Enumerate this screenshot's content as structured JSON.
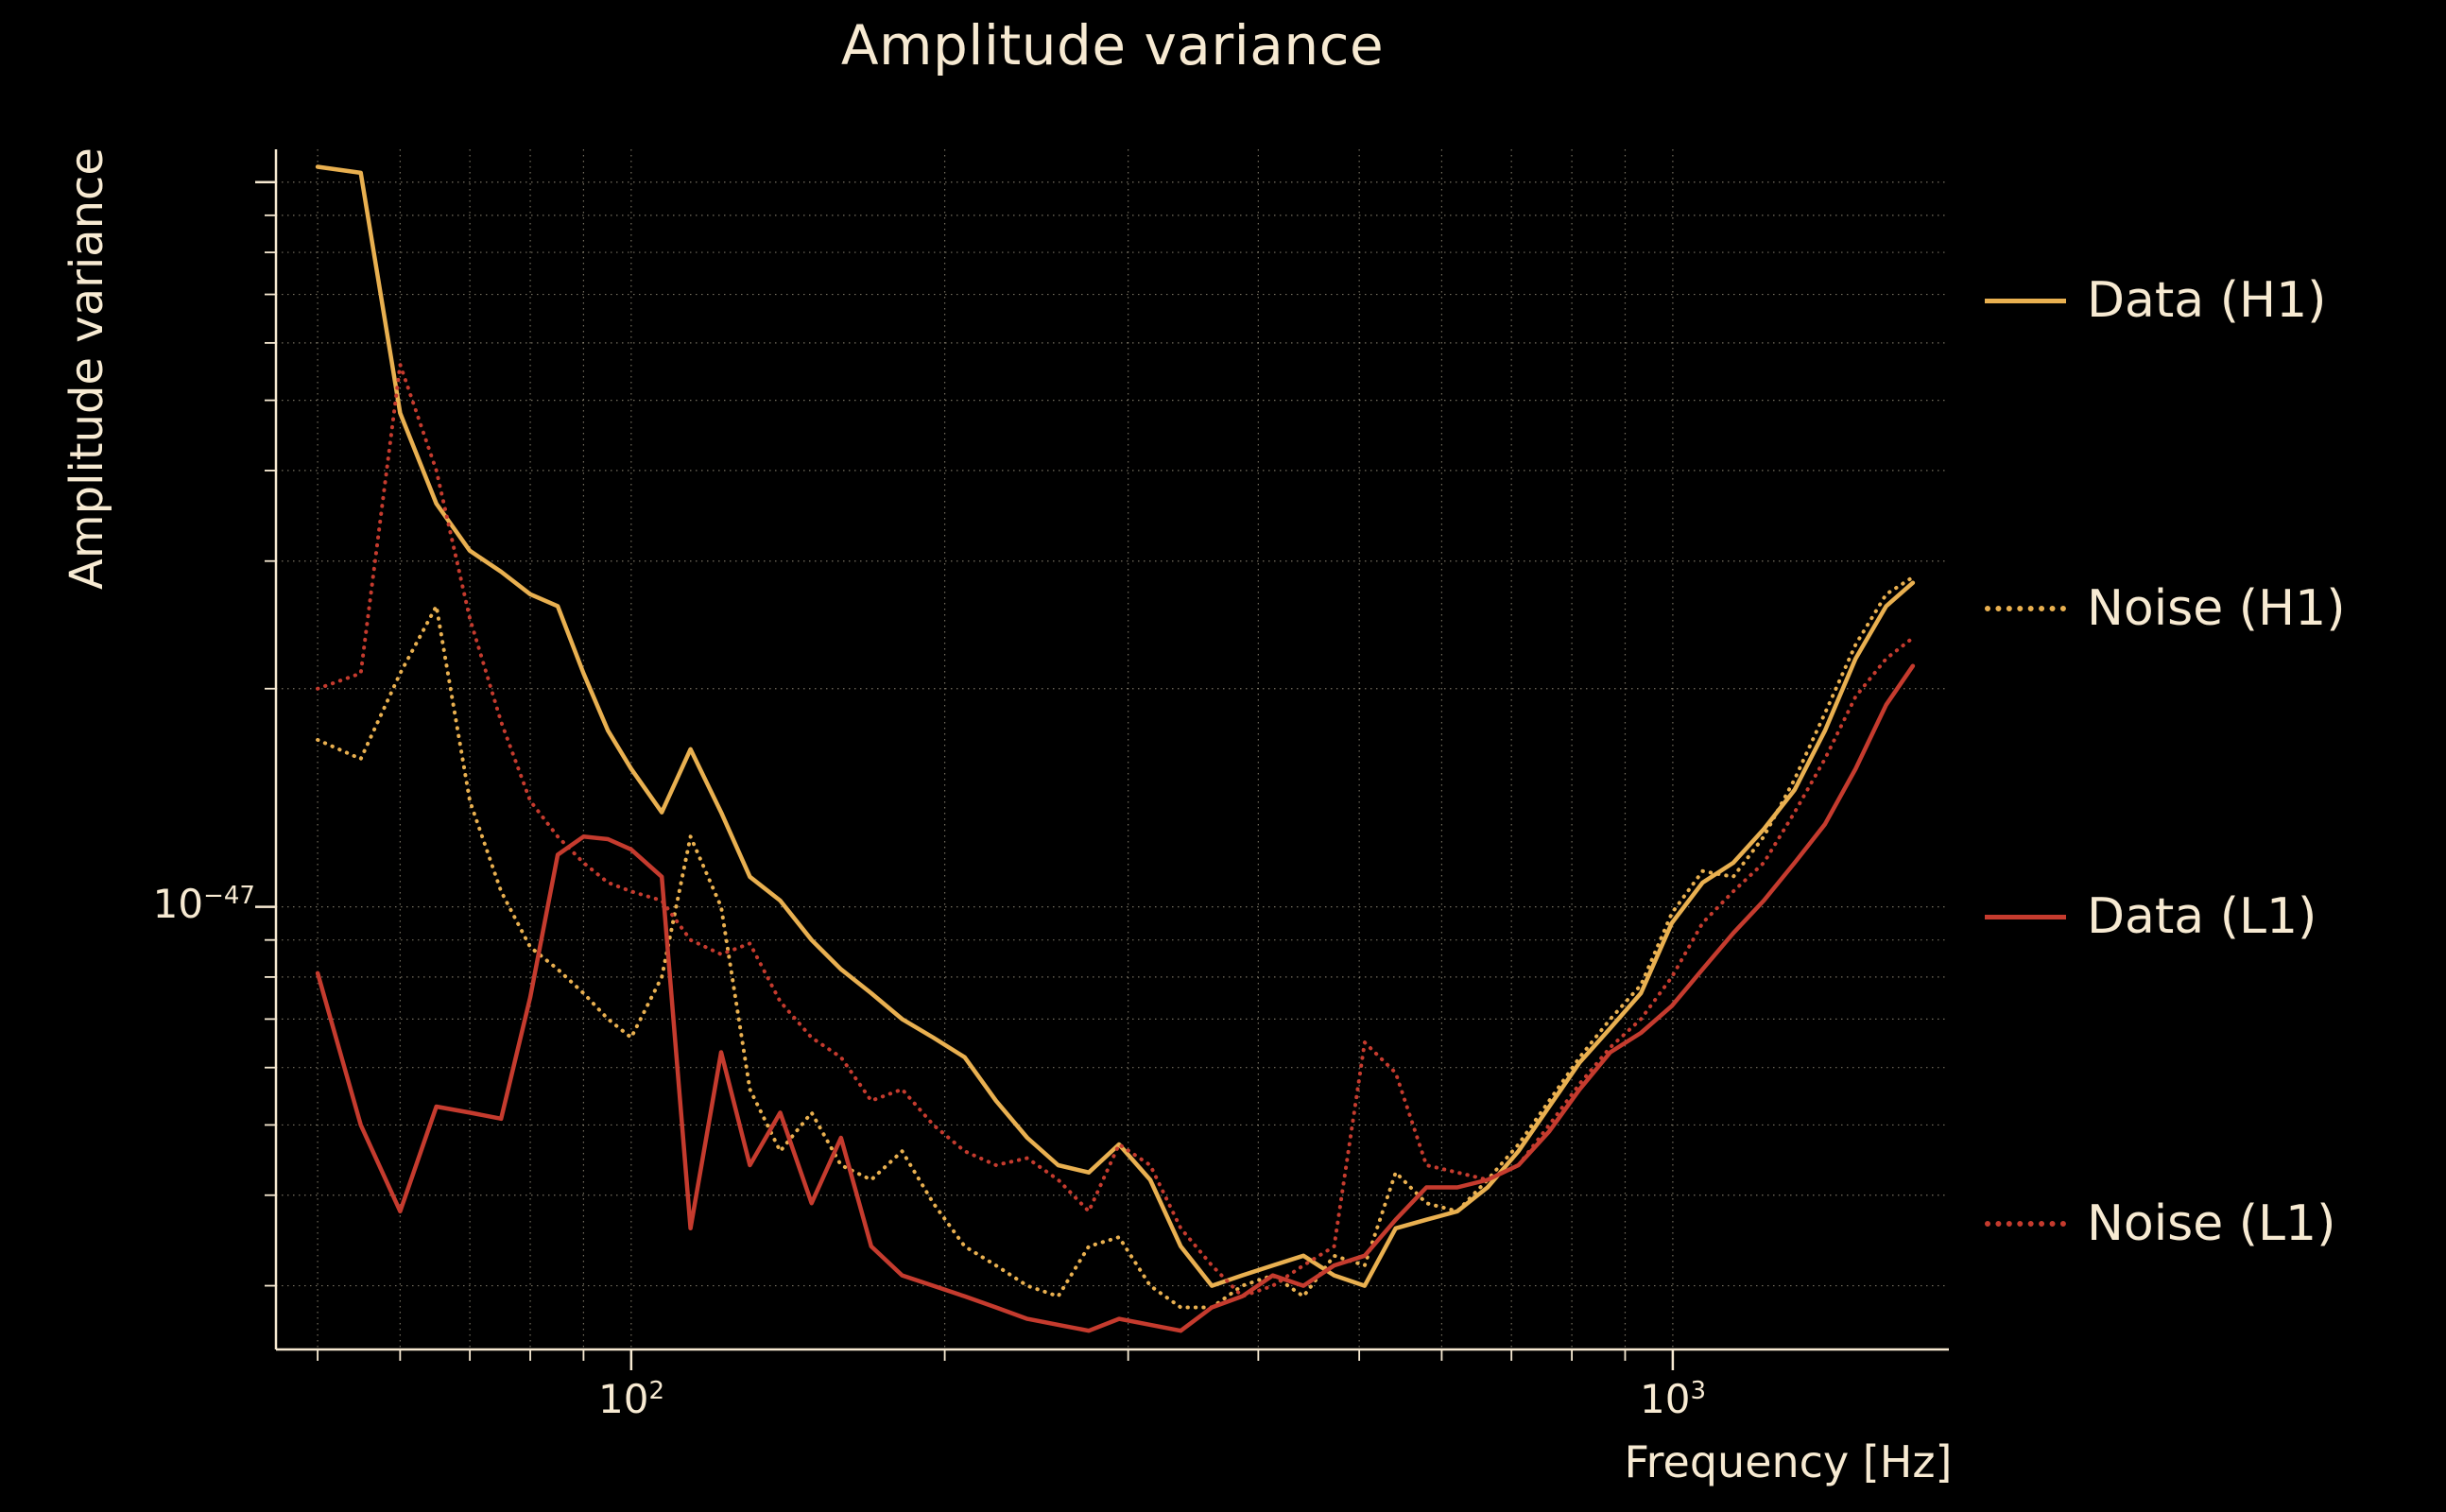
{
  "title": "Amplitude variance",
  "colors": {
    "background": "#000000",
    "text": "#f7ead2",
    "grid": "#e8dcbe",
    "h1": "#e9b050",
    "l1": "#c53b2e"
  },
  "axes": {
    "x_label": "Frequency [Hz]",
    "y_label": "Amplitude variance",
    "x_ticks": [
      {
        "base": "10",
        "exp": "2"
      },
      {
        "base": "10",
        "exp": "3"
      }
    ],
    "y_ticks": [
      {
        "base": "10",
        "exp": "−47"
      }
    ]
  },
  "legend": {
    "items": [
      {
        "label": "Data (H1)",
        "color": "#e9b050",
        "dash": "solid"
      },
      {
        "label": "Noise (H1)",
        "color": "#e9b050",
        "dash": "dotted"
      },
      {
        "label": "Data (L1)",
        "color": "#c53b2e",
        "dash": "solid"
      },
      {
        "label": "Noise (L1)",
        "color": "#c53b2e",
        "dash": "dotted"
      }
    ]
  },
  "chart_data": {
    "type": "line",
    "title": "Amplitude variance",
    "xlabel": "Frequency [Hz]",
    "ylabel": "Amplitude variance",
    "x_scale": "log",
    "y_scale": "log",
    "grid": true,
    "legend_position": "right-outside",
    "y_unit_note": "all y values and y gridlines are in units of 1e-48; the labeled tick 10^-47 corresponds to 10 in these units",
    "xlim": [
      45.6,
      1841
    ],
    "ylim_1e48": [
      2.45,
      111
    ],
    "x_gridlines": [
      50,
      60,
      70,
      80,
      90,
      100,
      200,
      300,
      400,
      500,
      600,
      700,
      800,
      900,
      1000
    ],
    "x_major_ticks": [
      100,
      1000
    ],
    "y_gridlines_1e48": [
      3,
      4,
      5,
      6,
      7,
      8,
      9,
      10,
      20,
      30,
      40,
      50,
      60,
      70,
      80,
      90,
      100
    ],
    "y_major_ticks_1e48": [
      10,
      100
    ],
    "x": [
      50,
      55,
      60,
      65,
      70,
      75,
      80,
      85,
      90,
      95,
      100,
      107,
      114,
      122,
      130,
      139,
      149,
      159,
      170,
      182,
      195,
      209,
      224,
      240,
      257,
      275,
      294,
      315,
      337,
      361,
      386,
      413,
      442,
      473,
      506,
      542,
      580,
      621,
      664,
      711,
      761,
      814,
      871,
      932,
      998,
      1068,
      1143,
      1223,
      1309,
      1400,
      1498,
      1603,
      1700
    ],
    "series": [
      {
        "name": "Data (H1)",
        "color": "#e9b050",
        "style": "solid",
        "values": [
          105,
          103,
          48,
          36,
          31,
          29,
          27,
          26,
          21,
          17.5,
          15.5,
          13.5,
          16.5,
          13.5,
          11,
          10.2,
          9,
          8.2,
          7.6,
          7,
          6.6,
          6.2,
          5.4,
          4.8,
          4.4,
          4.3,
          4.7,
          4.2,
          3.4,
          3,
          3.1,
          3.2,
          3.3,
          3.1,
          3,
          3.6,
          3.7,
          3.8,
          4.1,
          4.6,
          5.3,
          6.1,
          6.8,
          7.6,
          9.5,
          10.8,
          11.5,
          12.8,
          14.5,
          17.5,
          22,
          26,
          28
        ]
      },
      {
        "name": "Noise (H1)",
        "color": "#e9b050",
        "style": "dotted",
        "values": [
          17,
          16,
          21,
          26,
          14,
          10.5,
          8.8,
          8.2,
          7.6,
          7,
          6.6,
          8,
          12.5,
          10,
          5.6,
          4.6,
          5.2,
          4.4,
          4.2,
          4.6,
          3.9,
          3.4,
          3.2,
          3,
          2.9,
          3.4,
          3.5,
          3,
          2.8,
          2.8,
          3,
          3.1,
          2.9,
          3.3,
          3.2,
          4.3,
          3.9,
          3.8,
          4.2,
          4.7,
          5.4,
          6.2,
          7,
          7.8,
          9.8,
          11.2,
          11,
          12.5,
          15,
          18.5,
          23,
          27,
          28.5
        ]
      },
      {
        "name": "Data (L1)",
        "color": "#c53b2e",
        "style": "solid",
        "values": [
          8.1,
          5,
          3.8,
          5.3,
          5.2,
          5.1,
          7.5,
          11.8,
          12.5,
          12.4,
          12,
          11,
          3.6,
          6.3,
          4.4,
          5.2,
          3.9,
          4.8,
          3.4,
          3.1,
          3,
          2.9,
          2.8,
          2.7,
          2.65,
          2.6,
          2.7,
          2.65,
          2.6,
          2.8,
          2.9,
          3.1,
          3,
          3.2,
          3.3,
          3.7,
          4.1,
          4.1,
          4.2,
          4.4,
          4.9,
          5.6,
          6.3,
          6.7,
          7.3,
          8.2,
          9.2,
          10.2,
          11.5,
          13,
          15.5,
          19,
          21.5
        ]
      },
      {
        "name": "Noise (L1)",
        "color": "#c53b2e",
        "style": "dotted",
        "values": [
          20,
          21,
          56,
          40,
          25,
          18,
          14,
          12.5,
          11.5,
          10.8,
          10.5,
          10.2,
          9,
          8.6,
          8.9,
          7.4,
          6.6,
          6.2,
          5.4,
          5.6,
          5,
          4.6,
          4.4,
          4.5,
          4.2,
          3.8,
          4.7,
          4.4,
          3.6,
          3.2,
          2.9,
          3,
          3.2,
          3.4,
          6.5,
          5.9,
          4.4,
          4.3,
          4.2,
          4.4,
          5,
          5.7,
          6.4,
          7,
          8,
          9.5,
          10.5,
          11.5,
          13.5,
          16,
          19.5,
          22,
          23.5
        ]
      }
    ]
  }
}
